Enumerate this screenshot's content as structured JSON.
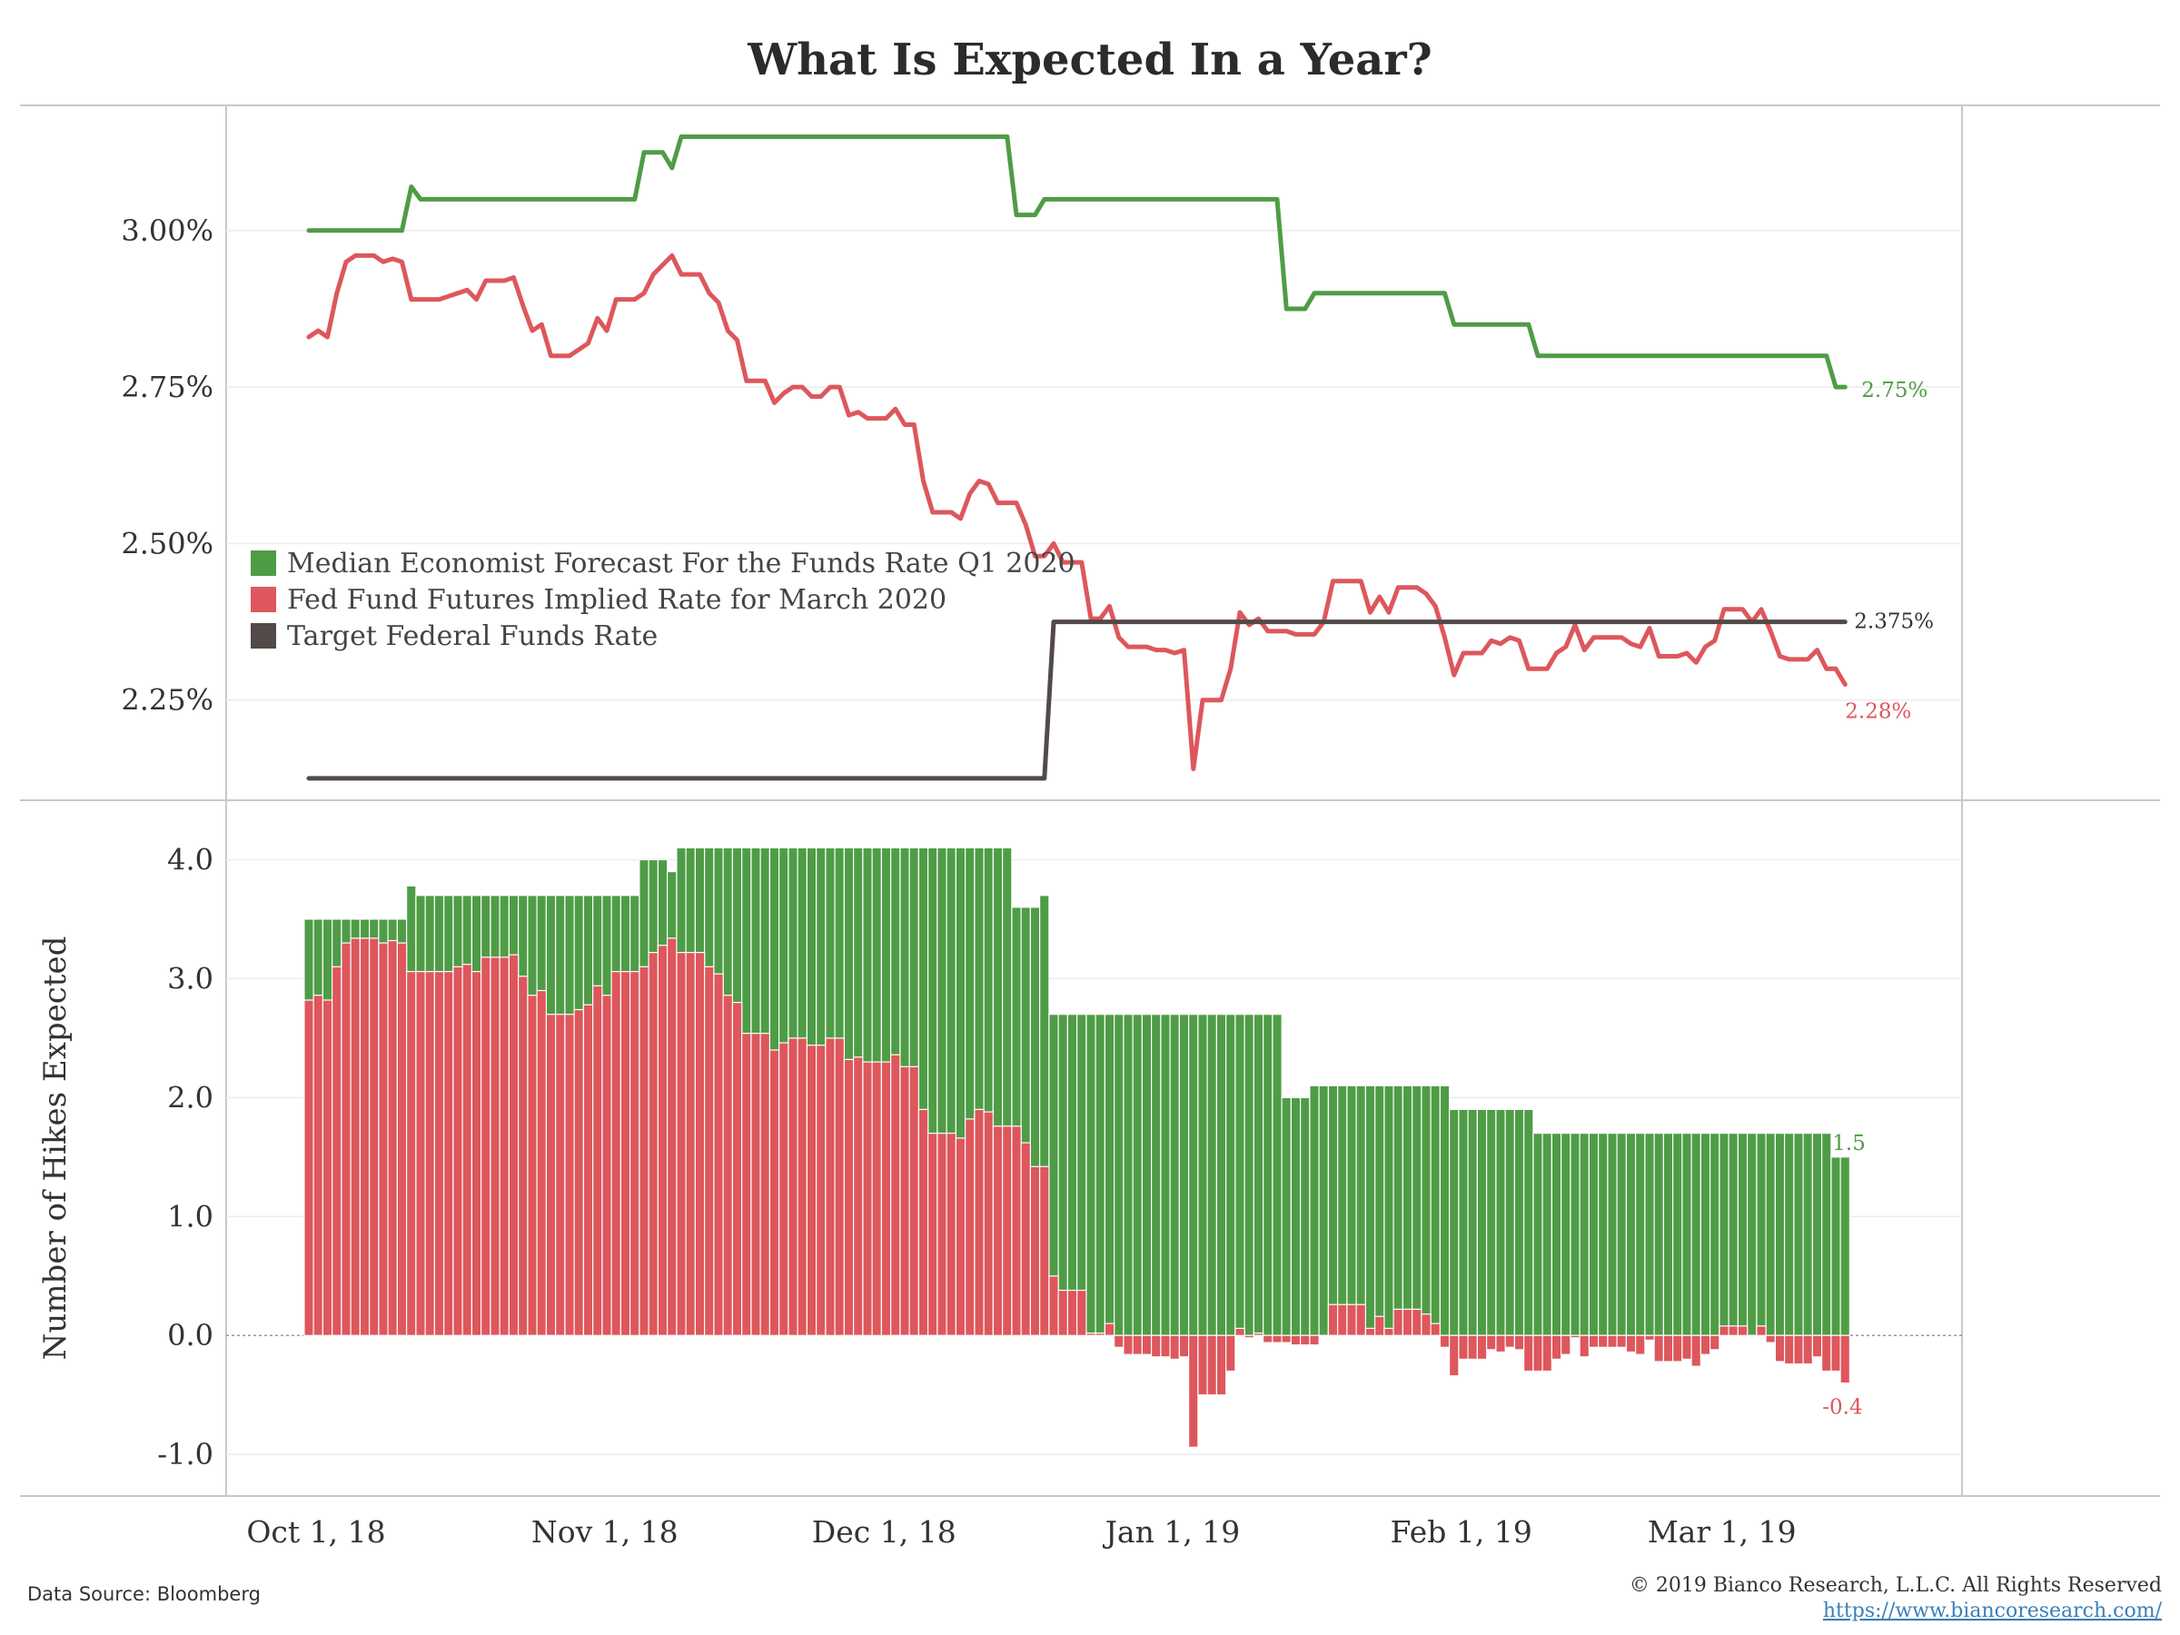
{
  "footer": {
    "source": "Data Source: Bloomberg",
    "copyright": "© 2019 Bianco Research, L.L.C. All Rights Reserved",
    "url": "https://www.biancoresearch.com/"
  },
  "chart_data": [
    {
      "type": "line",
      "title": "What Is Expected In a Year?",
      "xlabel": "",
      "ylabel": "",
      "x_start": "2018-10-01",
      "x_ticks": [
        "Oct 1, 18",
        "Nov 1, 18",
        "Dec 1, 18",
        "Jan 1, 19",
        "Feb 1, 19",
        "Mar 1, 19"
      ],
      "y_ticks": [
        "3.00%",
        "2.75%",
        "2.50%",
        "2.25%"
      ],
      "ylim": [
        2.09,
        3.2
      ],
      "grid": true,
      "legend": "middle-left",
      "series": [
        {
          "name": "Median Economist Forecast For the Funds Rate Q1 2020",
          "color": "#4f9c46",
          "end_label": "2.75%",
          "points": [
            {
              "x": "2018-10-01",
              "y": 3.0
            },
            {
              "x": "2018-10-11",
              "y": 3.0
            },
            {
              "x": "2018-10-12",
              "y": 3.07
            },
            {
              "x": "2018-10-13",
              "y": 3.05
            },
            {
              "x": "2018-11-05",
              "y": 3.05
            },
            {
              "x": "2018-11-06",
              "y": 3.125
            },
            {
              "x": "2018-11-08",
              "y": 3.125
            },
            {
              "x": "2018-11-09",
              "y": 3.1
            },
            {
              "x": "2018-11-10",
              "y": 3.15
            },
            {
              "x": "2018-12-15",
              "y": 3.15
            },
            {
              "x": "2018-12-16",
              "y": 3.025
            },
            {
              "x": "2018-12-18",
              "y": 3.025
            },
            {
              "x": "2018-12-19",
              "y": 3.05
            },
            {
              "x": "2019-01-13",
              "y": 3.05
            },
            {
              "x": "2019-01-14",
              "y": 2.875
            },
            {
              "x": "2019-01-16",
              "y": 2.875
            },
            {
              "x": "2019-01-17",
              "y": 2.9
            },
            {
              "x": "2019-01-31",
              "y": 2.9
            },
            {
              "x": "2019-02-01",
              "y": 2.85
            },
            {
              "x": "2019-02-09",
              "y": 2.85
            },
            {
              "x": "2019-02-10",
              "y": 2.8
            },
            {
              "x": "2019-02-11",
              "y": 2.8
            },
            {
              "x": "2019-03-13",
              "y": 2.8
            },
            {
              "x": "2019-03-14",
              "y": 2.75
            },
            {
              "x": "2019-03-15",
              "y": 2.75
            }
          ]
        },
        {
          "name": "Fed Fund Futures Implied Rate for March 2020",
          "color": "#dd575c",
          "end_label": "2.28%",
          "points": [
            {
              "x": "2018-10-01",
              "y": 2.83
            },
            {
              "x": "2018-10-02",
              "y": 2.84
            },
            {
              "x": "2018-10-03",
              "y": 2.83
            },
            {
              "x": "2018-10-04",
              "y": 2.9
            },
            {
              "x": "2018-10-05",
              "y": 2.95
            },
            {
              "x": "2018-10-06",
              "y": 2.96
            },
            {
              "x": "2018-10-07",
              "y": 2.96
            },
            {
              "x": "2018-10-08",
              "y": 2.96
            },
            {
              "x": "2018-10-09",
              "y": 2.95
            },
            {
              "x": "2018-10-10",
              "y": 2.955
            },
            {
              "x": "2018-10-11",
              "y": 2.95
            },
            {
              "x": "2018-10-12",
              "y": 2.89
            },
            {
              "x": "2018-10-13",
              "y": 2.89
            },
            {
              "x": "2018-10-15",
              "y": 2.89
            },
            {
              "x": "2018-10-17",
              "y": 2.9
            },
            {
              "x": "2018-10-18",
              "y": 2.905
            },
            {
              "x": "2018-10-19",
              "y": 2.89
            },
            {
              "x": "2018-10-20",
              "y": 2.92
            },
            {
              "x": "2018-10-22",
              "y": 2.92
            },
            {
              "x": "2018-10-23",
              "y": 2.925
            },
            {
              "x": "2018-10-24",
              "y": 2.88
            },
            {
              "x": "2018-10-25",
              "y": 2.84
            },
            {
              "x": "2018-10-26",
              "y": 2.85
            },
            {
              "x": "2018-10-27",
              "y": 2.8
            },
            {
              "x": "2018-10-29",
              "y": 2.8
            },
            {
              "x": "2018-10-30",
              "y": 2.81
            },
            {
              "x": "2018-10-31",
              "y": 2.82
            },
            {
              "x": "2018-11-01",
              "y": 2.86
            },
            {
              "x": "2018-11-02",
              "y": 2.84
            },
            {
              "x": "2018-11-03",
              "y": 2.89
            },
            {
              "x": "2018-11-05",
              "y": 2.89
            },
            {
              "x": "2018-11-06",
              "y": 2.9
            },
            {
              "x": "2018-11-07",
              "y": 2.93
            },
            {
              "x": "2018-11-08",
              "y": 2.945
            },
            {
              "x": "2018-11-09",
              "y": 2.96
            },
            {
              "x": "2018-11-10",
              "y": 2.93
            },
            {
              "x": "2018-11-12",
              "y": 2.93
            },
            {
              "x": "2018-11-13",
              "y": 2.9
            },
            {
              "x": "2018-11-14",
              "y": 2.885
            },
            {
              "x": "2018-11-15",
              "y": 2.84
            },
            {
              "x": "2018-11-16",
              "y": 2.825
            },
            {
              "x": "2018-11-17",
              "y": 2.76
            },
            {
              "x": "2018-11-19",
              "y": 2.76
            },
            {
              "x": "2018-11-20",
              "y": 2.725
            },
            {
              "x": "2018-11-21",
              "y": 2.74
            },
            {
              "x": "2018-11-22",
              "y": 2.75
            },
            {
              "x": "2018-11-23",
              "y": 2.75
            },
            {
              "x": "2018-11-24",
              "y": 2.735
            },
            {
              "x": "2018-11-25",
              "y": 2.735
            },
            {
              "x": "2018-11-26",
              "y": 2.75
            },
            {
              "x": "2018-11-27",
              "y": 2.75
            },
            {
              "x": "2018-11-28",
              "y": 2.705
            },
            {
              "x": "2018-11-29",
              "y": 2.71
            },
            {
              "x": "2018-11-30",
              "y": 2.7
            },
            {
              "x": "2018-12-01",
              "y": 2.7
            },
            {
              "x": "2018-12-02",
              "y": 2.7
            },
            {
              "x": "2018-12-03",
              "y": 2.715
            },
            {
              "x": "2018-12-04",
              "y": 2.69
            },
            {
              "x": "2018-12-05",
              "y": 2.69
            },
            {
              "x": "2018-12-06",
              "y": 2.6
            },
            {
              "x": "2018-12-07",
              "y": 2.55
            },
            {
              "x": "2018-12-09",
              "y": 2.55
            },
            {
              "x": "2018-12-10",
              "y": 2.54
            },
            {
              "x": "2018-12-11",
              "y": 2.58
            },
            {
              "x": "2018-12-12",
              "y": 2.6
            },
            {
              "x": "2018-12-13",
              "y": 2.595
            },
            {
              "x": "2018-12-14",
              "y": 2.565
            },
            {
              "x": "2018-12-16",
              "y": 2.565
            },
            {
              "x": "2018-12-17",
              "y": 2.53
            },
            {
              "x": "2018-12-18",
              "y": 2.48
            },
            {
              "x": "2018-12-19",
              "y": 2.48
            },
            {
              "x": "2018-12-20",
              "y": 2.5
            },
            {
              "x": "2018-12-21",
              "y": 2.47
            },
            {
              "x": "2018-12-23",
              "y": 2.47
            },
            {
              "x": "2018-12-24",
              "y": 2.38
            },
            {
              "x": "2018-12-25",
              "y": 2.38
            },
            {
              "x": "2018-12-26",
              "y": 2.4
            },
            {
              "x": "2018-12-27",
              "y": 2.35
            },
            {
              "x": "2018-12-28",
              "y": 2.335
            },
            {
              "x": "2018-12-30",
              "y": 2.335
            },
            {
              "x": "2018-12-31",
              "y": 2.33
            },
            {
              "x": "2019-01-01",
              "y": 2.33
            },
            {
              "x": "2019-01-02",
              "y": 2.325
            },
            {
              "x": "2019-01-03",
              "y": 2.33
            },
            {
              "x": "2019-01-04",
              "y": 2.14
            },
            {
              "x": "2019-01-05",
              "y": 2.25
            },
            {
              "x": "2019-01-07",
              "y": 2.25
            },
            {
              "x": "2019-01-08",
              "y": 2.3
            },
            {
              "x": "2019-01-09",
              "y": 2.39
            },
            {
              "x": "2019-01-10",
              "y": 2.37
            },
            {
              "x": "2019-01-11",
              "y": 2.38
            },
            {
              "x": "2019-01-12",
              "y": 2.36
            },
            {
              "x": "2019-01-14",
              "y": 2.36
            },
            {
              "x": "2019-01-15",
              "y": 2.355
            },
            {
              "x": "2019-01-17",
              "y": 2.355
            },
            {
              "x": "2019-01-18",
              "y": 2.375
            },
            {
              "x": "2019-01-19",
              "y": 2.44
            },
            {
              "x": "2019-01-21",
              "y": 2.44
            },
            {
              "x": "2019-01-22",
              "y": 2.44
            },
            {
              "x": "2019-01-23",
              "y": 2.39
            },
            {
              "x": "2019-01-24",
              "y": 2.415
            },
            {
              "x": "2019-01-25",
              "y": 2.39
            },
            {
              "x": "2019-01-26",
              "y": 2.43
            },
            {
              "x": "2019-01-28",
              "y": 2.43
            },
            {
              "x": "2019-01-29",
              "y": 2.42
            },
            {
              "x": "2019-01-30",
              "y": 2.4
            },
            {
              "x": "2019-01-31",
              "y": 2.35
            },
            {
              "x": "2019-02-01",
              "y": 2.29
            },
            {
              "x": "2019-02-02",
              "y": 2.325
            },
            {
              "x": "2019-02-03",
              "y": 2.325
            },
            {
              "x": "2019-02-04",
              "y": 2.325
            },
            {
              "x": "2019-02-05",
              "y": 2.345
            },
            {
              "x": "2019-02-06",
              "y": 2.34
            },
            {
              "x": "2019-02-07",
              "y": 2.35
            },
            {
              "x": "2019-02-08",
              "y": 2.345
            },
            {
              "x": "2019-02-09",
              "y": 2.3
            },
            {
              "x": "2019-02-10",
              "y": 2.3
            },
            {
              "x": "2019-02-11",
              "y": 2.3
            },
            {
              "x": "2019-02-12",
              "y": 2.325
            },
            {
              "x": "2019-02-13",
              "y": 2.335
            },
            {
              "x": "2019-02-14",
              "y": 2.37
            },
            {
              "x": "2019-02-15",
              "y": 2.33
            },
            {
              "x": "2019-02-16",
              "y": 2.35
            },
            {
              "x": "2019-02-18",
              "y": 2.35
            },
            {
              "x": "2019-02-19",
              "y": 2.35
            },
            {
              "x": "2019-02-20",
              "y": 2.34
            },
            {
              "x": "2019-02-21",
              "y": 2.335
            },
            {
              "x": "2019-02-22",
              "y": 2.365
            },
            {
              "x": "2019-02-23",
              "y": 2.32
            },
            {
              "x": "2019-02-25",
              "y": 2.32
            },
            {
              "x": "2019-02-26",
              "y": 2.325
            },
            {
              "x": "2019-02-27",
              "y": 2.31
            },
            {
              "x": "2019-02-28",
              "y": 2.335
            },
            {
              "x": "2019-03-01",
              "y": 2.345
            },
            {
              "x": "2019-03-02",
              "y": 2.395
            },
            {
              "x": "2019-03-04",
              "y": 2.395
            },
            {
              "x": "2019-03-05",
              "y": 2.375
            },
            {
              "x": "2019-03-06",
              "y": 2.395
            },
            {
              "x": "2019-03-07",
              "y": 2.36
            },
            {
              "x": "2019-03-08",
              "y": 2.32
            },
            {
              "x": "2019-03-09",
              "y": 2.315
            },
            {
              "x": "2019-03-10",
              "y": 2.315
            },
            {
              "x": "2019-03-11",
              "y": 2.315
            },
            {
              "x": "2019-03-12",
              "y": 2.33
            },
            {
              "x": "2019-03-13",
              "y": 2.3
            },
            {
              "x": "2019-03-14",
              "y": 2.3
            },
            {
              "x": "2019-03-15",
              "y": 2.275
            }
          ]
        },
        {
          "name": "Target Federal Funds Rate",
          "color": "#514a48",
          "end_label": "2.375%",
          "points": [
            {
              "x": "2018-10-01",
              "y": 2.125
            },
            {
              "x": "2018-12-19",
              "y": 2.125
            },
            {
              "x": "2018-12-20",
              "y": 2.375
            },
            {
              "x": "2019-03-15",
              "y": 2.375
            }
          ]
        }
      ]
    },
    {
      "type": "bar",
      "ylabel": "Number of Hikes Expected",
      "xlabel": "",
      "y_ticks": [
        "4.0",
        "3.0",
        "2.0",
        "1.0",
        "0.0",
        "-1.0"
      ],
      "ylim": [
        -1.35,
        4.5
      ],
      "x_ticks": [
        "Oct 1, 18",
        "Nov 1, 18",
        "Dec 1, 18",
        "Jan 1, 19",
        "Feb 1, 19",
        "Mar 1, 19"
      ],
      "series": [
        {
          "name": "Median Economist Forecast For the Funds Rate Q1 2020",
          "color": "#4f9c46",
          "end_label": "1.5"
        },
        {
          "name": "Fed Fund Futures Implied Rate for March 2020",
          "color": "#dd575c",
          "end_label": "-0.4"
        }
      ]
    }
  ]
}
